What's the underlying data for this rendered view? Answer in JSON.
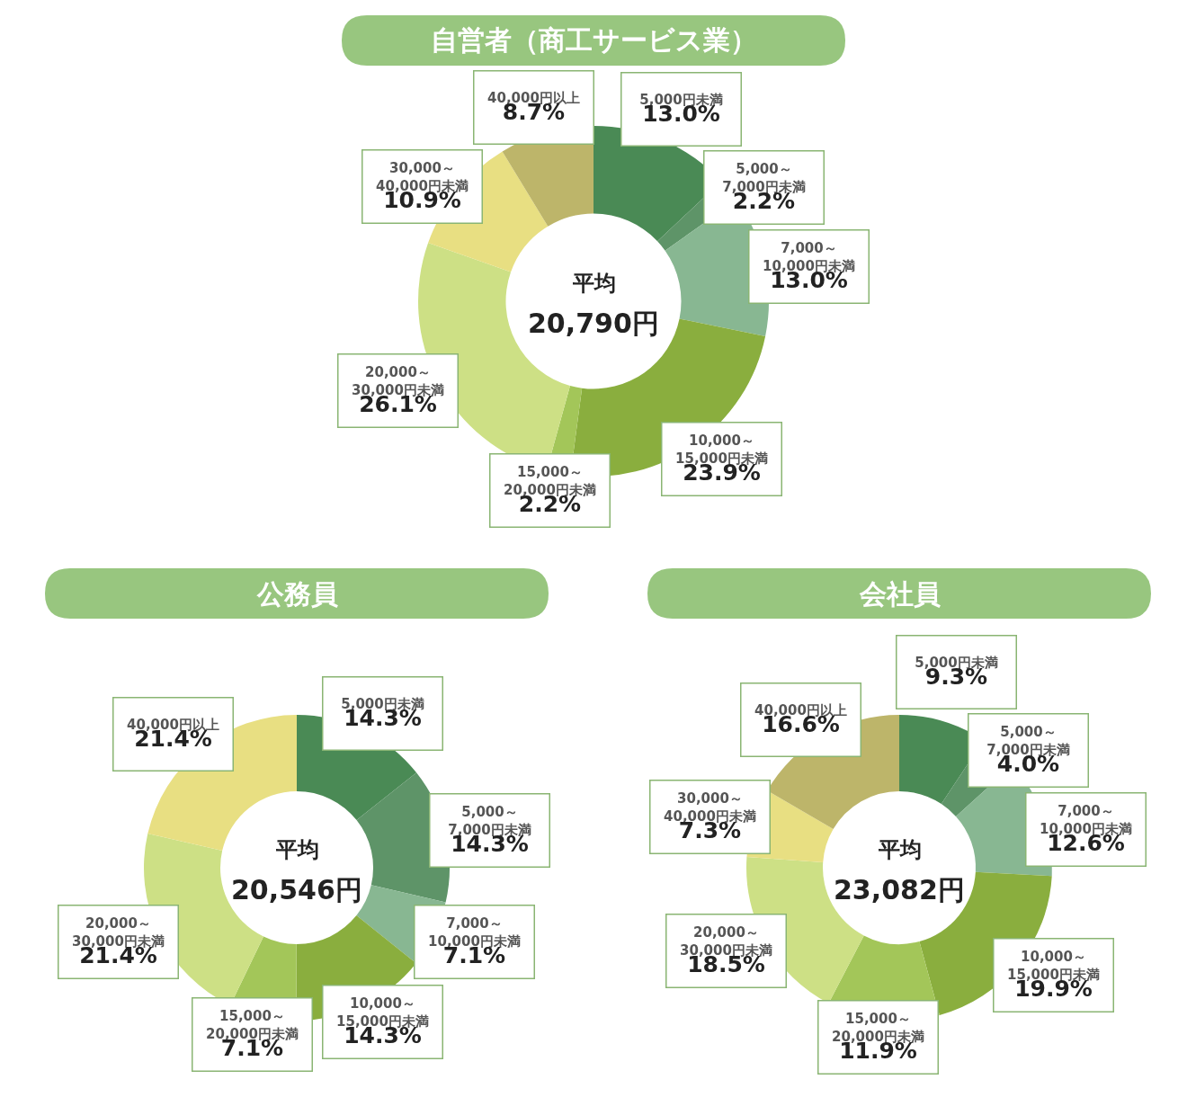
{
  "chart_data": [
    {
      "type": "donut",
      "title": "自営者（商工サービス業）",
      "annotations": [
        "平均\n20,790円"
      ],
      "categories": [
        "5,000円未満",
        "5,000～7,000円未満",
        "7,000～10,000円未満",
        "10,000～15,000円未満",
        "15,000～20,000円未満",
        "20,000～30,000円未満",
        "30,000～40,000円未満",
        "40,000円以上"
      ],
      "values": [
        13.0,
        2.2,
        13.0,
        23.9,
        2.2,
        26.1,
        10.9,
        8.7
      ],
      "value_labels": [
        "13.0%",
        "2.2%",
        "13.0%",
        "23.9%",
        "2.2%",
        "26.1%",
        "10.9%",
        "8.7%"
      ],
      "colors": [
        "#4a8a55",
        "#5e9468",
        "#88b792",
        "#8aae3e",
        "#a3c659",
        "#cde085",
        "#e8df82",
        "#bdb56a"
      ]
    },
    {
      "type": "donut",
      "title": "公務員",
      "annotations": [
        "平均\n20,546円"
      ],
      "categories": [
        "5,000円未満",
        "5,000～7,000円未満",
        "7,000～10,000円未満",
        "10,000～15,000円未満",
        "15,000～20,000円未満",
        "20,000～30,000円未満",
        "40,000円以上"
      ],
      "values": [
        14.3,
        14.3,
        7.1,
        14.3,
        7.1,
        21.4,
        21.4
      ],
      "value_labels": [
        "14.3%",
        "14.3%",
        "7.1%",
        "14.3%",
        "7.1%",
        "21.4%",
        "21.4%"
      ],
      "colors": [
        "#4a8a55",
        "#5e9468",
        "#88b792",
        "#8aae3e",
        "#a3c659",
        "#cde085",
        "#e8df82"
      ]
    },
    {
      "type": "donut",
      "title": "会社員",
      "annotations": [
        "平均\n23,082円"
      ],
      "categories": [
        "5,000円未満",
        "5,000～7,000円未満",
        "7,000～10,000円未満",
        "10,000～15,000円未満",
        "15,000～20,000円未満",
        "20,000～30,000円未満",
        "30,000～40,000円未満",
        "40,000円以上"
      ],
      "values": [
        9.3,
        4.0,
        12.6,
        19.9,
        11.9,
        18.5,
        7.3,
        16.6
      ],
      "value_labels": [
        "9.3%",
        "4.0%",
        "12.6%",
        "19.9%",
        "11.9%",
        "18.5%",
        "7.3%",
        "16.6%"
      ],
      "colors": [
        "#4a8a55",
        "#5e9468",
        "#88b792",
        "#8aae3e",
        "#a3c659",
        "#cde085",
        "#e8df82",
        "#bdb56a"
      ]
    }
  ]
}
